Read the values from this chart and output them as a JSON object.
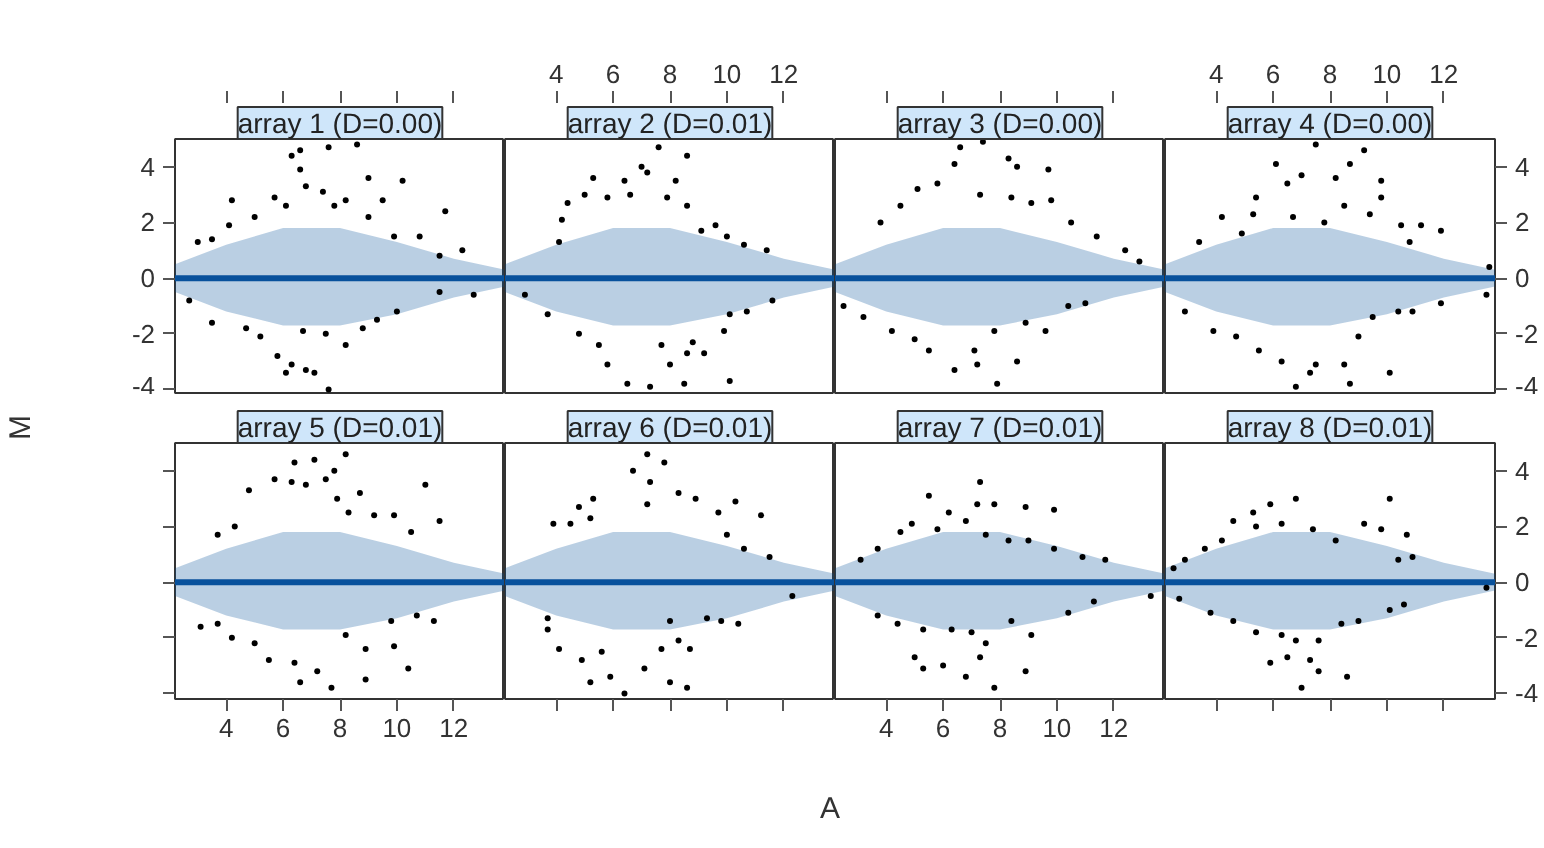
{
  "chart_data": [
    {
      "type": "scatter",
      "title": "array 1 (D=0.00)",
      "ylabel": "M",
      "xlim": [
        2.2,
        13.8
      ],
      "ylim": [
        -4.2,
        5.0
      ],
      "xticks": [
        4,
        6,
        8,
        10,
        12
      ],
      "yticks": [
        -4,
        -2,
        0,
        2,
        4
      ],
      "tick_labels": "y",
      "series": [
        {
          "type": "line",
          "color": "#08519c",
          "x": [
            2.2,
            4,
            6,
            8,
            10,
            12,
            13.8
          ],
          "values": [
            0,
            0,
            0,
            0,
            0,
            0,
            0
          ],
          "lower": [
            -0.5,
            -1.2,
            -1.7,
            -1.7,
            -1.3,
            -0.7,
            -0.3
          ],
          "upper": [
            0.5,
            1.2,
            1.8,
            1.8,
            1.3,
            0.7,
            0.3
          ]
        },
        {
          "marker": "circle",
          "color": "#000000",
          "x": [
            6.6,
            6.3,
            6.6,
            7.6,
            8.6,
            3.0,
            3.5,
            4.2,
            4.1,
            5.0,
            5.7,
            6.1,
            6.8,
            7.4,
            7.8,
            8.2,
            9.0,
            9.0,
            9.5,
            10.2,
            9.9,
            10.8,
            11.7,
            11.5,
            12.3,
            2.7,
            3.5,
            4.7,
            5.2,
            5.8,
            6.3,
            6.8,
            7.6,
            6.7,
            7.5,
            8.2,
            8.8,
            9.3,
            10.0,
            11.5,
            12.7,
            7.1,
            6.1
          ],
          "values": [
            4.6,
            4.4,
            3.9,
            4.7,
            4.8,
            1.3,
            1.4,
            2.8,
            1.9,
            2.2,
            2.9,
            2.6,
            3.3,
            3.1,
            2.6,
            2.8,
            3.6,
            2.2,
            2.8,
            3.5,
            1.5,
            1.5,
            2.4,
            0.8,
            1.0,
            -0.8,
            -1.6,
            -1.8,
            -2.1,
            -2.8,
            -3.1,
            -3.3,
            -4.0,
            -1.9,
            -2.0,
            -2.4,
            -1.8,
            -1.5,
            -1.2,
            -0.5,
            -0.6,
            -3.4,
            -3.4
          ]
        }
      ]
    },
    {
      "type": "scatter",
      "title": "array 2 (D=0.01)",
      "xlim": [
        2.2,
        13.8
      ],
      "ylim": [
        -4.2,
        5.0
      ],
      "xticks": [
        4,
        6,
        8,
        10,
        12
      ],
      "tick_labels": "x",
      "series": [
        {
          "type": "line",
          "color": "#08519c",
          "x": [
            2.2,
            4,
            6,
            8,
            10,
            12,
            13.8
          ],
          "values": [
            0,
            0,
            0,
            0,
            0,
            0,
            0
          ],
          "lower": [
            -0.5,
            -1.2,
            -1.7,
            -1.7,
            -1.3,
            -0.7,
            -0.3
          ],
          "upper": [
            0.5,
            1.2,
            1.8,
            1.8,
            1.3,
            0.7,
            0.3
          ]
        },
        {
          "marker": "circle",
          "color": "#000000",
          "x": [
            7.0,
            7.6,
            8.6,
            5.3,
            6.4,
            7.2,
            8.2,
            4.4,
            4.2,
            4.1,
            5.0,
            5.8,
            6.6,
            7.9,
            8.6,
            9.1,
            9.6,
            10.0,
            10.6,
            11.4,
            2.9,
            3.7,
            4.8,
            5.5,
            5.8,
            6.5,
            7.3,
            8.0,
            7.7,
            8.6,
            9.2,
            8.8,
            9.9,
            10.1,
            10.7,
            11.6,
            10.1,
            8.5
          ],
          "values": [
            4.0,
            4.7,
            4.4,
            3.6,
            3.5,
            3.8,
            3.5,
            2.7,
            2.1,
            1.3,
            3.0,
            2.9,
            3.0,
            2.9,
            2.6,
            1.7,
            1.9,
            1.5,
            1.2,
            1.0,
            -0.6,
            -1.3,
            -2.0,
            -2.4,
            -3.1,
            -3.8,
            -3.9,
            -3.1,
            -2.4,
            -2.7,
            -2.7,
            -2.3,
            -1.9,
            -1.3,
            -1.2,
            -0.8,
            -3.7,
            -3.8
          ]
        }
      ]
    },
    {
      "type": "scatter",
      "title": "array 3 (D=0.00)",
      "xlim": [
        2.2,
        13.8
      ],
      "ylim": [
        -4.2,
        5.0
      ],
      "xticks": [
        4,
        6,
        8,
        10,
        12
      ],
      "tick_labels": false,
      "series": [
        {
          "type": "line",
          "color": "#08519c",
          "x": [
            2.2,
            4,
            6,
            8,
            10,
            12,
            13.8
          ],
          "values": [
            0,
            0,
            0,
            0,
            0,
            0,
            0
          ],
          "lower": [
            -0.5,
            -1.2,
            -1.7,
            -1.7,
            -1.3,
            -0.7,
            -0.3
          ],
          "upper": [
            0.5,
            1.2,
            1.8,
            1.8,
            1.3,
            0.7,
            0.3
          ]
        },
        {
          "marker": "circle",
          "color": "#000000",
          "x": [
            6.6,
            7.4,
            6.4,
            5.8,
            5.1,
            4.5,
            3.8,
            7.3,
            8.3,
            8.6,
            9.7,
            8.4,
            9.1,
            9.8,
            10.5,
            11.4,
            12.4,
            12.9,
            2.5,
            3.2,
            4.2,
            5.0,
            5.5,
            6.4,
            7.1,
            7.2,
            7.9,
            7.8,
            8.6,
            9.6,
            8.9,
            10.4,
            11.0
          ],
          "values": [
            4.7,
            4.9,
            4.1,
            3.4,
            3.2,
            2.6,
            2.0,
            3.0,
            4.3,
            4.0,
            3.9,
            2.9,
            2.7,
            2.8,
            2.0,
            1.5,
            1.0,
            0.6,
            -1.0,
            -1.4,
            -1.9,
            -2.2,
            -2.6,
            -3.3,
            -2.6,
            -3.1,
            -3.8,
            -1.9,
            -3.0,
            -1.9,
            -1.6,
            -1.0,
            -0.9
          ]
        }
      ]
    },
    {
      "type": "scatter",
      "title": "array 4 (D=0.00)",
      "xlim": [
        2.2,
        13.8
      ],
      "ylim": [
        -4.2,
        5.0
      ],
      "xticks": [
        4,
        6,
        8,
        10,
        12
      ],
      "yticks": [
        -4,
        -2,
        0,
        2,
        4
      ],
      "series": [
        {
          "type": "line",
          "color": "#08519c",
          "x": [
            2.2,
            4,
            6,
            8,
            10,
            12,
            13.8
          ],
          "values": [
            0,
            0,
            0,
            0,
            0,
            0,
            0
          ],
          "lower": [
            -0.5,
            -1.2,
            -1.7,
            -1.7,
            -1.3,
            -0.7,
            -0.3
          ],
          "upper": [
            0.5,
            1.2,
            1.8,
            1.8,
            1.3,
            0.7,
            0.3
          ]
        },
        {
          "marker": "circle",
          "color": "#000000",
          "x": [
            6.1,
            7.5,
            9.2,
            6.5,
            7.0,
            8.2,
            8.7,
            9.8,
            5.4,
            5.3,
            4.2,
            3.4,
            4.9,
            6.7,
            7.8,
            8.5,
            9.4,
            9.8,
            10.5,
            11.2,
            11.9,
            10.8,
            13.6,
            2.9,
            3.9,
            4.7,
            5.5,
            6.3,
            7.3,
            7.5,
            6.8,
            8.5,
            9.0,
            9.5,
            10.4,
            10.9,
            11.9,
            13.5,
            10.1,
            8.7
          ],
          "values": [
            4.1,
            4.8,
            4.6,
            3.4,
            3.7,
            3.6,
            4.1,
            3.5,
            2.9,
            2.3,
            2.2,
            1.3,
            1.6,
            2.2,
            2.0,
            2.6,
            2.3,
            2.9,
            1.9,
            1.9,
            1.7,
            1.3,
            0.4,
            -1.2,
            -1.9,
            -2.1,
            -2.6,
            -3.0,
            -3.4,
            -3.1,
            -3.9,
            -3.1,
            -2.1,
            -1.4,
            -1.2,
            -1.2,
            -0.9,
            -0.6,
            -3.4,
            -3.8
          ]
        }
      ]
    },
    {
      "type": "scatter",
      "title": "array 5 (D=0.01)",
      "xlim": [
        2.2,
        13.8
      ],
      "ylim": [
        -4.2,
        5.0
      ],
      "xticks": [
        4,
        6,
        8,
        10,
        12
      ],
      "yticks": [
        -4,
        -2,
        0,
        2,
        4
      ],
      "tick_labels": "x",
      "series": [
        {
          "type": "line",
          "color": "#08519c",
          "x": [
            2.2,
            4,
            6,
            8,
            10,
            12,
            13.8
          ],
          "values": [
            0,
            0,
            0,
            0,
            0,
            0,
            0
          ],
          "lower": [
            -0.5,
            -1.2,
            -1.7,
            -1.7,
            -1.3,
            -0.7,
            -0.3
          ],
          "upper": [
            0.5,
            1.2,
            1.8,
            1.8,
            1.3,
            0.7,
            0.3
          ]
        },
        {
          "marker": "circle",
          "color": "#000000",
          "x": [
            6.4,
            7.1,
            8.2,
            7.8,
            7.5,
            6.8,
            6.3,
            5.7,
            4.8,
            7.9,
            8.7,
            8.3,
            9.2,
            9.9,
            10.5,
            11.0,
            11.5,
            4.3,
            3.7,
            3.1,
            3.7,
            4.2,
            5.0,
            5.5,
            6.4,
            6.6,
            7.2,
            7.7,
            8.2,
            8.9,
            8.9,
            9.9,
            9.8,
            10.7,
            11.3,
            10.4
          ],
          "values": [
            4.3,
            4.4,
            4.6,
            4.0,
            3.7,
            3.5,
            3.6,
            3.7,
            3.3,
            3.0,
            3.2,
            2.5,
            2.4,
            2.4,
            1.8,
            3.5,
            2.2,
            2.0,
            1.7,
            -1.6,
            -1.5,
            -2.0,
            -2.2,
            -2.8,
            -2.9,
            -3.6,
            -3.2,
            -3.8,
            -1.9,
            -2.4,
            -3.5,
            -2.3,
            -1.4,
            -1.2,
            -1.4,
            -3.1
          ]
        }
      ]
    },
    {
      "type": "scatter",
      "title": "array 6 (D=0.01)",
      "xlim": [
        2.2,
        13.8
      ],
      "ylim": [
        -4.2,
        5.0
      ],
      "xticks": [
        4,
        6,
        8,
        10,
        12
      ],
      "tick_labels": false,
      "series": [
        {
          "type": "line",
          "color": "#08519c",
          "x": [
            2.2,
            4,
            6,
            8,
            10,
            12,
            13.8
          ],
          "values": [
            0,
            0,
            0,
            0,
            0,
            0,
            0
          ],
          "lower": [
            -0.5,
            -1.2,
            -1.7,
            -1.7,
            -1.3,
            -0.7,
            -0.3
          ],
          "upper": [
            0.5,
            1.2,
            1.8,
            1.8,
            1.3,
            0.7,
            0.3
          ]
        },
        {
          "marker": "circle",
          "color": "#000000",
          "x": [
            7.2,
            7.8,
            6.7,
            7.3,
            5.3,
            4.8,
            3.9,
            4.5,
            5.2,
            7.2,
            8.3,
            8.9,
            9.7,
            10.3,
            11.2,
            10.0,
            10.6,
            11.5,
            12.3,
            3.7,
            3.7,
            4.1,
            4.9,
            5.6,
            5.2,
            5.9,
            6.4,
            7.1,
            7.7,
            8.0,
            8.3,
            8.7,
            9.3,
            9.8,
            10.4,
            8.0,
            8.6
          ],
          "values": [
            4.6,
            4.3,
            4.0,
            3.6,
            3.0,
            2.7,
            2.1,
            2.1,
            2.3,
            2.8,
            3.2,
            3.0,
            2.5,
            2.9,
            2.4,
            1.7,
            1.2,
            0.9,
            -0.5,
            -1.3,
            -1.7,
            -2.4,
            -2.8,
            -2.5,
            -3.6,
            -3.4,
            -4.0,
            -3.1,
            -2.4,
            -1.4,
            -2.1,
            -2.4,
            -1.3,
            -1.4,
            -1.5,
            -3.6,
            -3.8
          ]
        }
      ]
    },
    {
      "type": "scatter",
      "title": "array 7 (D=0.01)",
      "xlabel": "A",
      "xlim": [
        2.2,
        13.8
      ],
      "ylim": [
        -4.2,
        5.0
      ],
      "xticks": [
        4,
        6,
        8,
        10,
        12
      ],
      "tick_labels": "x",
      "series": [
        {
          "type": "line",
          "color": "#08519c",
          "x": [
            2.2,
            4,
            6,
            8,
            10,
            12,
            13.8
          ],
          "values": [
            0,
            0,
            0,
            0,
            0,
            0,
            0
          ],
          "lower": [
            -0.5,
            -1.2,
            -1.7,
            -1.7,
            -1.3,
            -0.7,
            -0.3
          ],
          "upper": [
            0.5,
            1.2,
            1.8,
            1.8,
            1.3,
            0.7,
            0.3
          ]
        },
        {
          "marker": "circle",
          "color": "#000000",
          "x": [
            7.3,
            5.5,
            6.2,
            7.2,
            7.8,
            8.9,
            9.9,
            4.9,
            4.5,
            3.7,
            3.1,
            5.8,
            6.8,
            7.5,
            8.3,
            9.0,
            9.9,
            10.9,
            11.7,
            13.3,
            11.3,
            10.4,
            3.7,
            4.4,
            5.3,
            6.3,
            7.0,
            7.5,
            7.3,
            6.0,
            5.0,
            5.3,
            6.8,
            7.8,
            8.9,
            9.1,
            8.4
          ],
          "values": [
            3.6,
            3.1,
            2.5,
            2.8,
            2.8,
            2.7,
            2.6,
            2.1,
            1.8,
            1.2,
            0.8,
            1.9,
            2.2,
            1.7,
            1.5,
            1.5,
            1.2,
            0.9,
            0.8,
            -0.5,
            -0.7,
            -1.1,
            -1.2,
            -1.5,
            -1.7,
            -1.7,
            -1.8,
            -2.2,
            -2.7,
            -3.0,
            -2.7,
            -3.1,
            -3.4,
            -3.8,
            -3.2,
            -1.9,
            -1.4
          ]
        }
      ]
    },
    {
      "type": "scatter",
      "title": "array 8 (D=0.01)",
      "xlim": [
        2.2,
        13.8
      ],
      "ylim": [
        -4.2,
        5.0
      ],
      "xticks": [
        4,
        6,
        8,
        10,
        12
      ],
      "yticks": [
        -4,
        -2,
        0,
        2,
        4
      ],
      "tick_labels": "y",
      "series": [
        {
          "type": "line",
          "color": "#08519c",
          "x": [
            2.2,
            4,
            6,
            8,
            10,
            12,
            13.8
          ],
          "values": [
            0,
            0,
            0,
            0,
            0,
            0,
            0
          ],
          "lower": [
            -0.5,
            -1.2,
            -1.7,
            -1.7,
            -1.3,
            -0.7,
            -0.3
          ],
          "upper": [
            0.5,
            1.2,
            1.8,
            1.8,
            1.3,
            0.7,
            0.3
          ]
        },
        {
          "marker": "circle",
          "color": "#000000",
          "x": [
            6.8,
            5.9,
            5.3,
            4.6,
            4.2,
            5.4,
            6.3,
            7.4,
            8.2,
            9.2,
            9.8,
            10.1,
            10.7,
            10.9,
            10.4,
            3.6,
            2.9,
            2.5,
            2.7,
            3.8,
            4.6,
            5.4,
            6.3,
            6.8,
            7.6,
            8.4,
            9.0,
            5.9,
            6.5,
            7.3,
            7.6,
            8.6,
            7.0,
            10.1,
            10.6,
            13.5
          ],
          "values": [
            3.0,
            2.8,
            2.5,
            2.2,
            1.5,
            2.0,
            2.1,
            1.9,
            1.5,
            2.1,
            1.9,
            3.0,
            1.7,
            0.9,
            0.8,
            1.2,
            0.8,
            0.5,
            -0.6,
            -1.1,
            -1.4,
            -1.8,
            -1.9,
            -2.1,
            -2.1,
            -1.5,
            -1.4,
            -2.9,
            -2.7,
            -2.8,
            -3.2,
            -3.4,
            -3.8,
            -1.0,
            -0.8,
            -0.2
          ]
        }
      ]
    }
  ]
}
